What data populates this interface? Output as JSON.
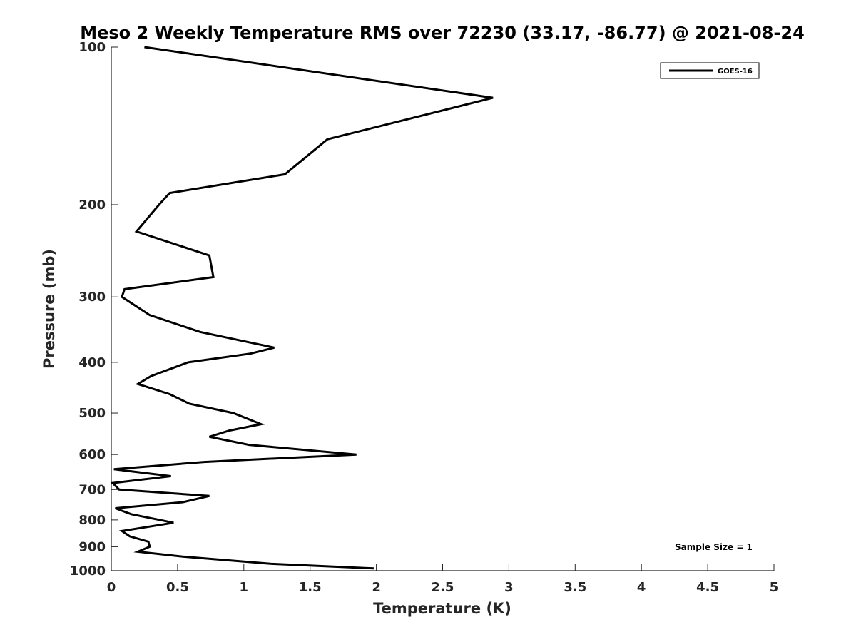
{
  "chart_data": {
    "type": "line",
    "title": "Meso 2 Weekly Temperature RMS over 72230 (33.17, -86.77) @ 2021-08-24",
    "xlabel": "Temperature (K)",
    "ylabel": "Pressure (mb)",
    "xlim": [
      0,
      5
    ],
    "ylim": [
      1000,
      100
    ],
    "y_scale": "log",
    "y_reversed": true,
    "grid": false,
    "x_ticks": [
      0,
      0.5,
      1,
      1.5,
      2,
      2.5,
      3,
      3.5,
      4,
      4.5,
      5
    ],
    "x_tick_labels": [
      "0",
      "0.5",
      "1",
      "1.5",
      "2",
      "2.5",
      "3",
      "3.5",
      "4",
      "4.5",
      "5"
    ],
    "y_ticks": [
      100,
      200,
      300,
      400,
      500,
      600,
      700,
      800,
      900,
      1000
    ],
    "y_tick_labels": [
      "100",
      "200",
      "300",
      "400",
      "500",
      "600",
      "700",
      "800",
      "900",
      "1000"
    ],
    "legend_position": "top-right",
    "annotation": "Sample Size = 1",
    "series": [
      {
        "name": "GOES-16",
        "color": "#000000",
        "points": [
          [
            0.25,
            100
          ],
          [
            2.88,
            125
          ],
          [
            1.63,
            150
          ],
          [
            1.31,
            175
          ],
          [
            0.44,
            190
          ],
          [
            0.36,
            200
          ],
          [
            0.19,
            225
          ],
          [
            0.74,
            250
          ],
          [
            0.77,
            275
          ],
          [
            0.1,
            290
          ],
          [
            0.08,
            300
          ],
          [
            0.29,
            325
          ],
          [
            0.67,
            350
          ],
          [
            1.23,
            375
          ],
          [
            1.05,
            385
          ],
          [
            0.58,
            400
          ],
          [
            0.3,
            425
          ],
          [
            0.2,
            440
          ],
          [
            0.44,
            460
          ],
          [
            0.59,
            480
          ],
          [
            0.92,
            500
          ],
          [
            1.13,
            525
          ],
          [
            0.89,
            540
          ],
          [
            0.74,
            555
          ],
          [
            1.04,
            575
          ],
          [
            1.85,
            600
          ],
          [
            0.7,
            620
          ],
          [
            0.02,
            640
          ],
          [
            0.45,
            660
          ],
          [
            0.01,
            680
          ],
          [
            0.06,
            700
          ],
          [
            0.74,
            720
          ],
          [
            0.54,
            740
          ],
          [
            0.03,
            760
          ],
          [
            0.15,
            780
          ],
          [
            0.47,
            810
          ],
          [
            0.08,
            840
          ],
          [
            0.14,
            860
          ],
          [
            0.28,
            880
          ],
          [
            0.29,
            900
          ],
          [
            0.2,
            920
          ],
          [
            0.54,
            940
          ],
          [
            0.87,
            955
          ],
          [
            1.2,
            970
          ],
          [
            1.98,
            990
          ]
        ]
      }
    ]
  }
}
